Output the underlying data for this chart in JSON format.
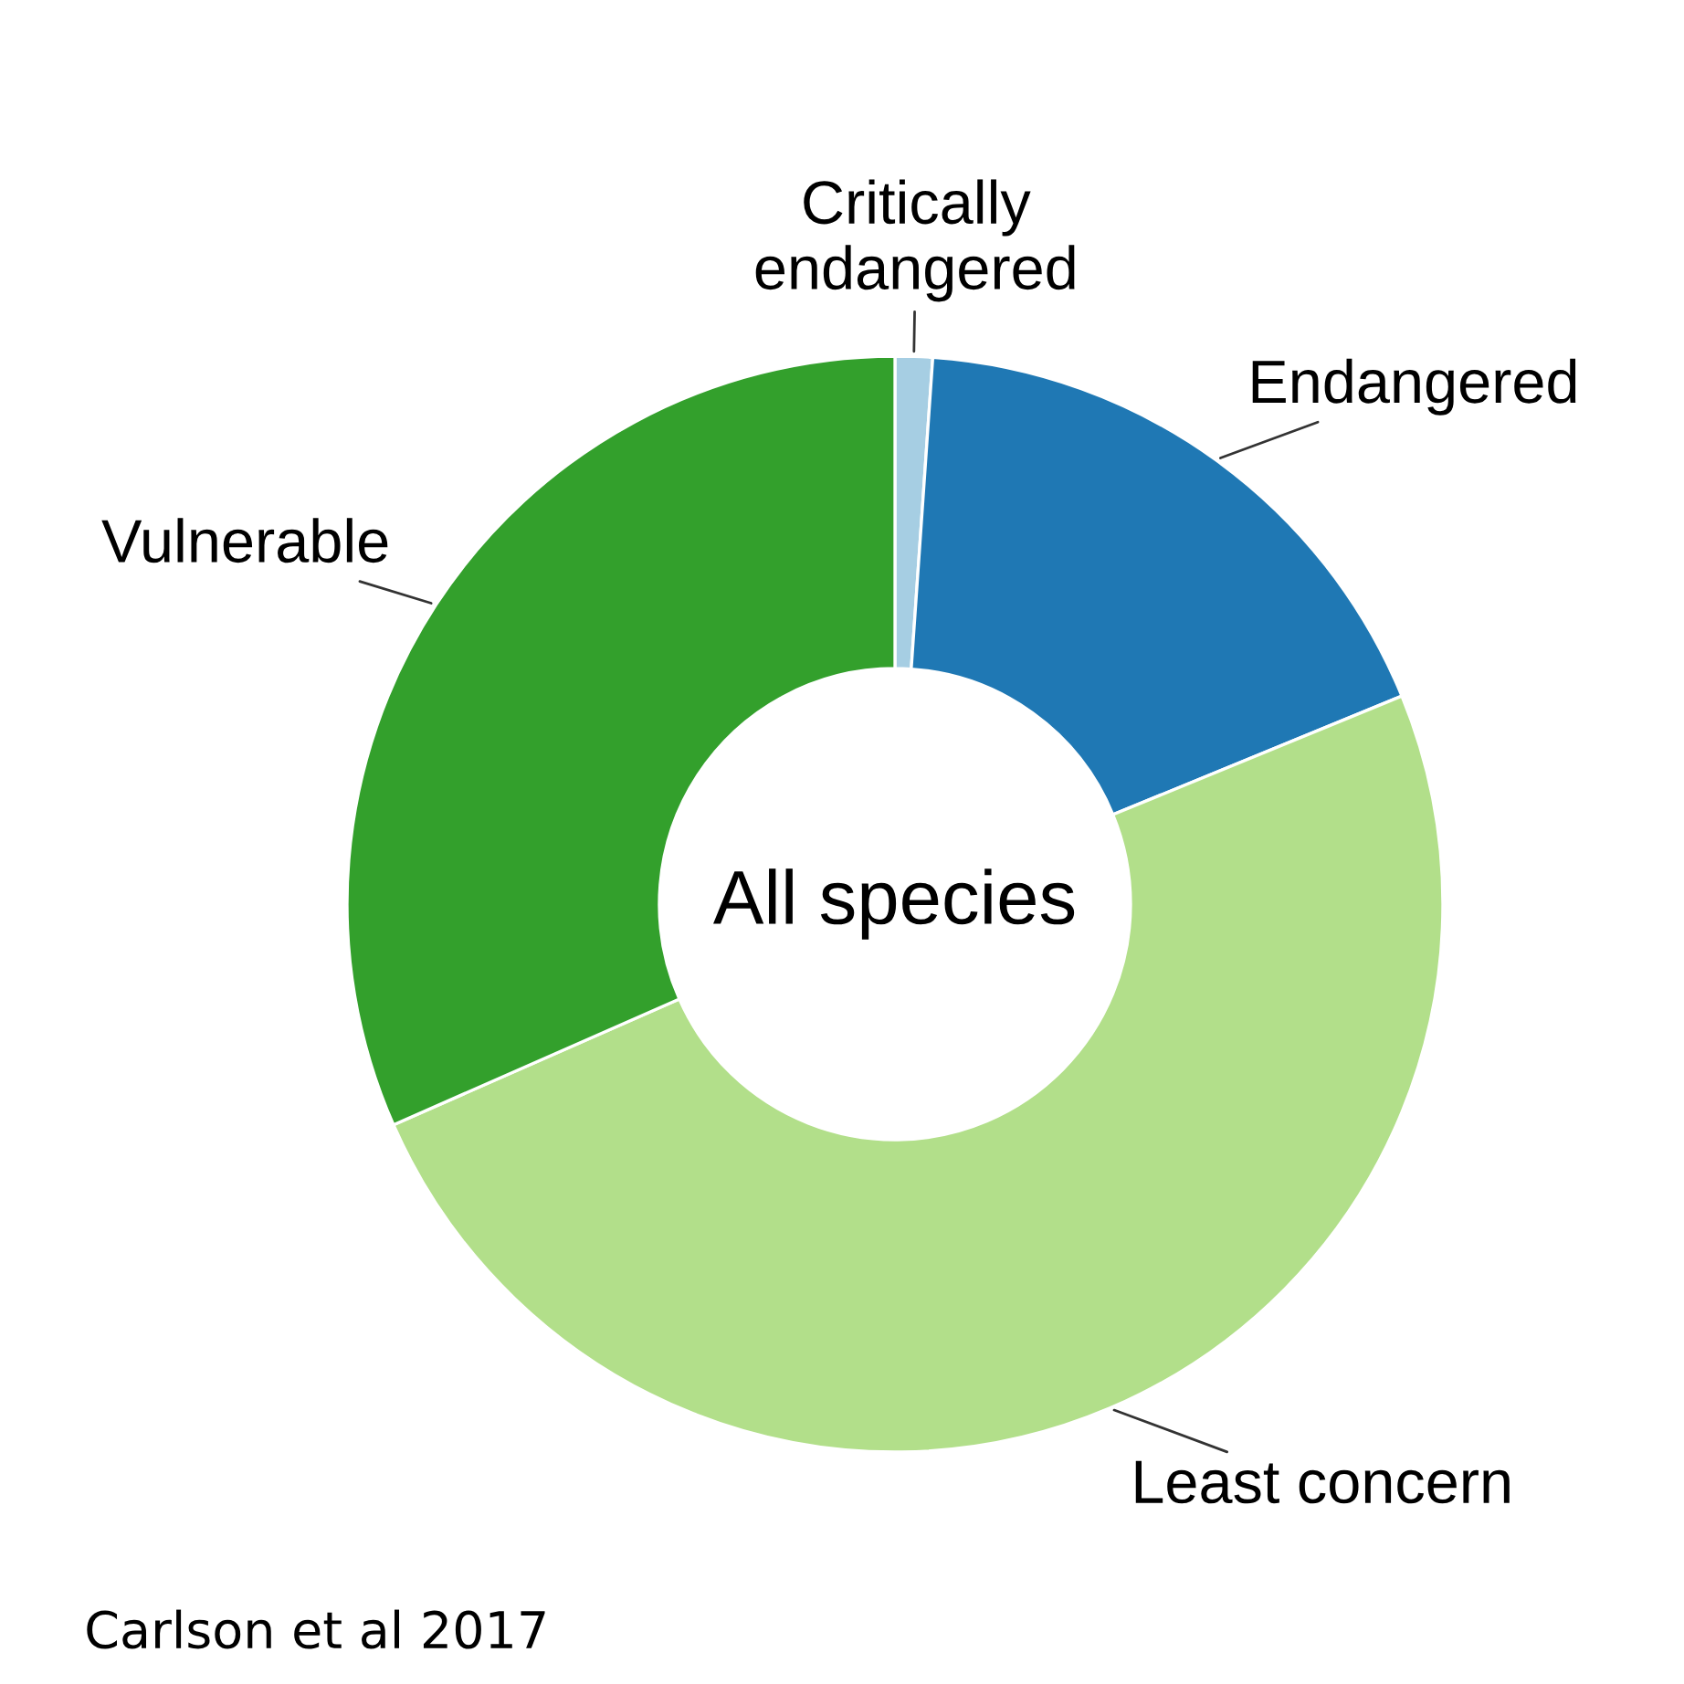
{
  "chart_data": {
    "type": "donut",
    "title": "All species",
    "categories": [
      "Critically\nendangered",
      "Endangered",
      "Least concern",
      "Vulnerable"
    ],
    "values": [
      1.1,
      17.7,
      49.6,
      31.6
    ],
    "colors": [
      "#a6cee3",
      "#1f78b4",
      "#b2df8a",
      "#33a02c"
    ],
    "annotations": [
      "Carlson et al 2017"
    ],
    "legend": false
  }
}
